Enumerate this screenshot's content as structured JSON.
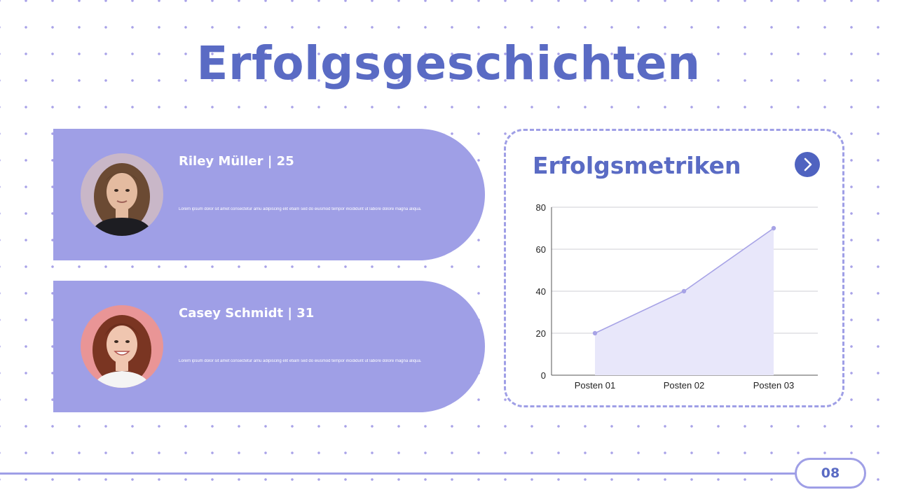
{
  "slide": {
    "title": "Erfolgsgeschichten",
    "page_number": "08"
  },
  "stories": [
    {
      "name": "Riley Müller | 25",
      "description": "Lorem ipsum dolor sit amet consectetur amu adipiscing elit etiam sed do eiusmod tempor incididunt ut labore dolore magna aliqua."
    },
    {
      "name": "Casey Schmidt | 31",
      "description": "Lorem ipsum dolor sit amet consectetur amu adipiscing elit etiam sed do eiusmod tempor incididunt ut labore dolore magna aliqua."
    }
  ],
  "metrics": {
    "title": "Erfolgsmetriken",
    "next_icon": "chevron-right-icon"
  },
  "colors": {
    "accent": "#5a6bc4",
    "card": "#9f9fe6",
    "button": "#4f63c0",
    "area_fill": "#e8e7fa",
    "line": "#a7a3e6"
  },
  "chart_data": {
    "type": "area",
    "categories": [
      "Posten 01",
      "Posten 02",
      "Posten 03"
    ],
    "values": [
      20,
      40,
      70
    ],
    "ylim": [
      0,
      80
    ],
    "yticks": [
      "0",
      "20",
      "40",
      "60",
      "80"
    ],
    "grid": true,
    "title": "",
    "xlabel": "",
    "ylabel": ""
  }
}
